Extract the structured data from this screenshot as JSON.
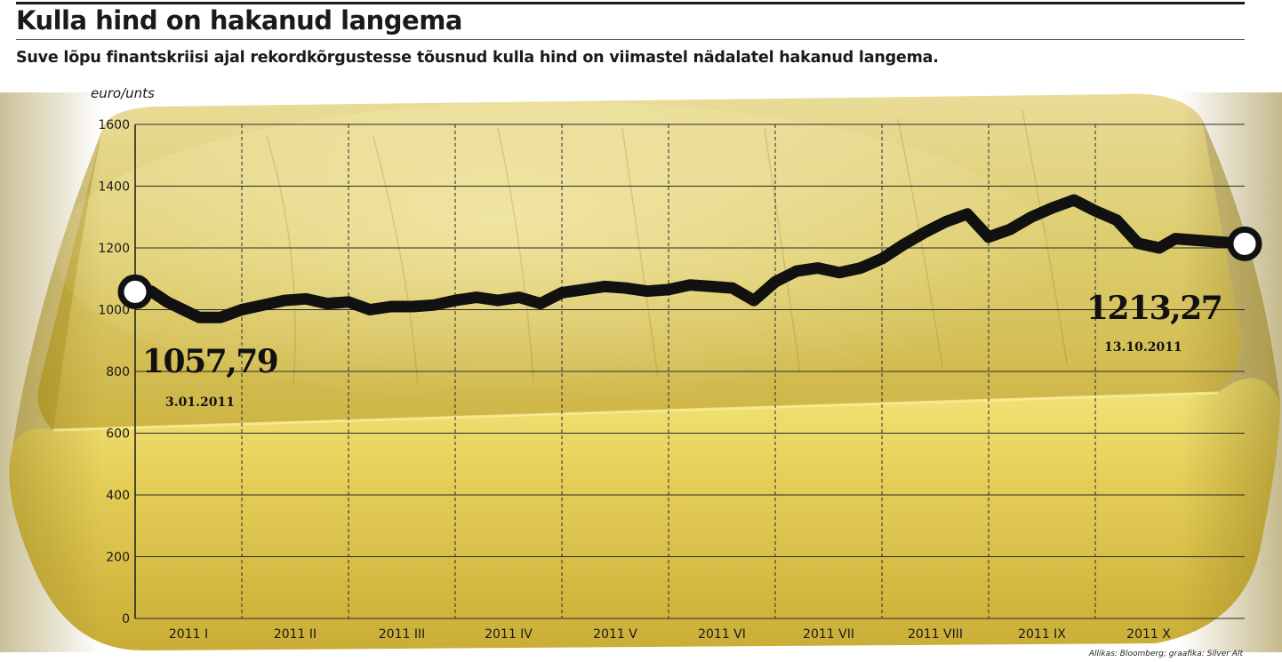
{
  "header": {
    "title": "Kulla hind on hakanud langema",
    "subtitle": "Suve lõpu finantskriisi ajal rekordkõrgustesse tõusnud kulla hind on viimastel nädalatel hakanud langema.",
    "source": "Allikas: Bloomberg; graafika: Silver Alt"
  },
  "chart_data": {
    "type": "line",
    "ylabel": "euro/unts",
    "ylim": [
      0,
      1600
    ],
    "yticks": [
      0,
      200,
      400,
      600,
      800,
      1000,
      1200,
      1400,
      1600
    ],
    "ytick_labels": [
      "0",
      "200",
      "400",
      "600",
      "800",
      "1000",
      "1200",
      "1400",
      "1600"
    ],
    "categories": [
      "2011 I",
      "2011 II",
      "2011 III",
      "2011 IV",
      "2011 V",
      "2011 VI",
      "2011 VII",
      "2011 VIII",
      "2011 IX",
      "2011 X"
    ],
    "grid": true,
    "series": [
      {
        "x": [
          0,
          0.15,
          0.3,
          0.45,
          0.6,
          0.8,
          1.0,
          1.2,
          1.4,
          1.6,
          1.8,
          2.0,
          2.2,
          2.4,
          2.6,
          2.8,
          3.0,
          3.2,
          3.4,
          3.6,
          3.8,
          4.0,
          4.2,
          4.4,
          4.6,
          4.8,
          5.0,
          5.2,
          5.4,
          5.6,
          5.8,
          6.0,
          6.2,
          6.4,
          6.6,
          6.8,
          7.0,
          7.2,
          7.4,
          7.6,
          7.8,
          8.0,
          8.2,
          8.4,
          8.6,
          8.8,
          9.0,
          9.2,
          9.4,
          9.6,
          9.75,
          10.4
        ],
        "values": [
          1057.79,
          1060,
          1025,
          1000,
          975,
          975,
          1000,
          1015,
          1030,
          1035,
          1020,
          1025,
          1000,
          1010,
          1010,
          1015,
          1030,
          1040,
          1030,
          1040,
          1020,
          1055,
          1065,
          1075,
          1070,
          1060,
          1065,
          1080,
          1075,
          1070,
          1030,
          1090,
          1125,
          1135,
          1120,
          1135,
          1165,
          1210,
          1250,
          1285,
          1310,
          1235,
          1260,
          1300,
          1330,
          1355,
          1320,
          1290,
          1215,
          1200,
          1230,
          1213.27
        ]
      }
    ],
    "annotations": {
      "start_value": "1057,79",
      "start_date": "3.01.2011",
      "end_value": "1213,27",
      "end_date": "13.10.2011"
    },
    "colors": {
      "line": "#111111",
      "marker_fill": "#ffffff",
      "gold_light": "#f2e38a",
      "gold_mid": "#d9c24a",
      "gold_dark": "#9c8520",
      "grid": "#2a2a2a"
    }
  }
}
